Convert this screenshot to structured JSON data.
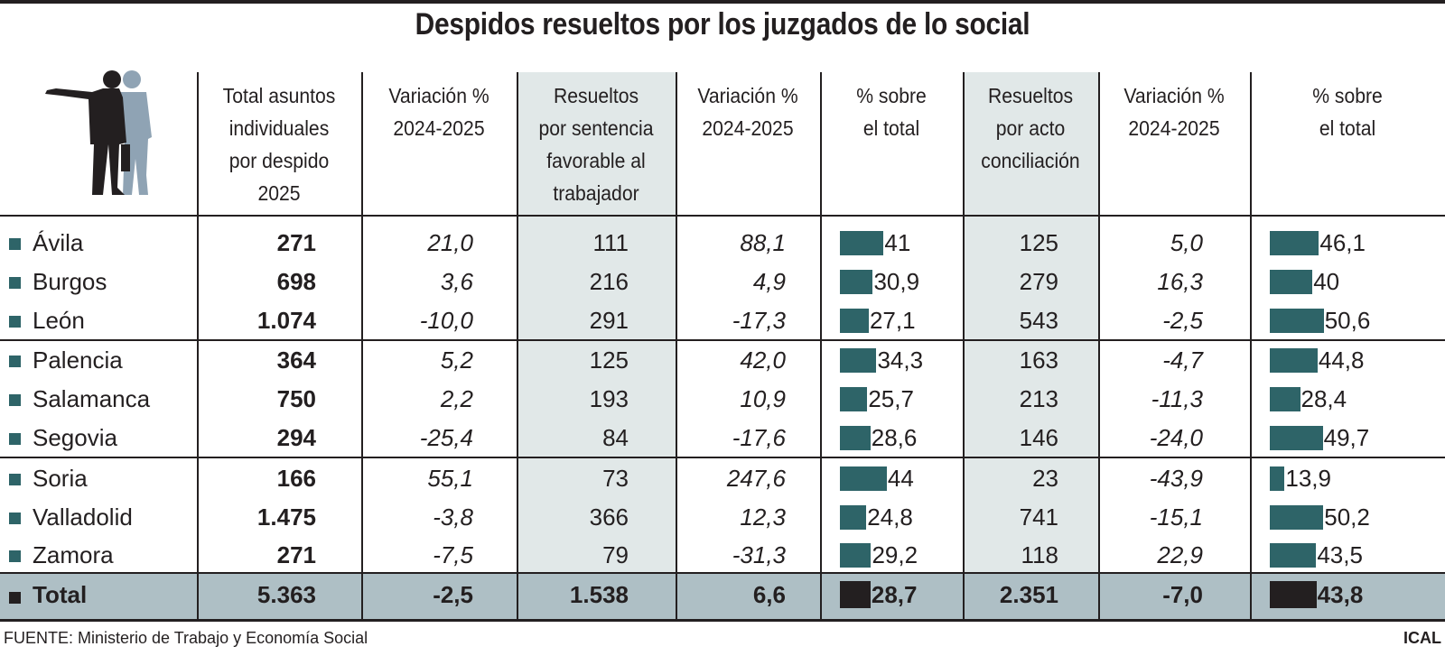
{
  "title": "Despidos resueltos por los juzgados de lo social",
  "source": "FUENTE: Ministerio de Trabajo y Economía Social",
  "credit": "ICAL",
  "colors": {
    "bar": "#2e6468",
    "total_bar": "#231f20",
    "shaded_column": "#e1e8e8",
    "total_row": "#aebfc5"
  },
  "icons": {
    "header": "businessman-pointing-silhouette-icon",
    "row_marker": "square-bullet-icon"
  },
  "chart_data": {
    "type": "table",
    "title": "Despidos resueltos por los juzgados de lo social",
    "columns": [
      "",
      "Total asuntos\nindividuales\npor despido\n2025",
      "Variación %\n2024-2025",
      "Resueltos\npor sentencia\nfavorable al\ntrabajador",
      "Variación %\n2024-2025",
      "% sobre\nel total",
      "Resueltos\npor acto\nconciliación",
      "Variación %\n2024-2025",
      "% sobre\nel total"
    ],
    "rows": [
      [
        "Ávila",
        "271",
        "21,0",
        "111",
        "88,1",
        "41",
        "125",
        "5,0",
        "46,1"
      ],
      [
        "Burgos",
        "698",
        "3,6",
        "216",
        "4,9",
        "30,9",
        "279",
        "16,3",
        "40"
      ],
      [
        "León",
        "1.074",
        "-10,0",
        "291",
        "-17,3",
        "27,1",
        "543",
        "-2,5",
        "50,6"
      ],
      [
        "Palencia",
        "364",
        "5,2",
        "125",
        "42,0",
        "34,3",
        "163",
        "-4,7",
        "44,8"
      ],
      [
        "Salamanca",
        "750",
        "2,2",
        "193",
        "10,9",
        "25,7",
        "213",
        "-11,3",
        "28,4"
      ],
      [
        "Segovia",
        "294",
        "-25,4",
        "84",
        "-17,6",
        "28,6",
        "146",
        "-24,0",
        "49,7"
      ],
      [
        "Soria",
        "166",
        "55,1",
        "73",
        "247,6",
        "44",
        "23",
        "-43,9",
        "13,9"
      ],
      [
        "Valladolid",
        "1.475",
        "-3,8",
        "366",
        "12,3",
        "24,8",
        "741",
        "-15,1",
        "50,2"
      ],
      [
        "Zamora",
        "271",
        "-7,5",
        "79",
        "-31,3",
        "29,2",
        "118",
        "22,9",
        "43,5"
      ]
    ],
    "total": [
      "Total",
      "5.363",
      "-2,5",
      "1.538",
      "6,6",
      "28,7",
      "2.351",
      "-7,0",
      "43,8"
    ],
    "bar_columns": [
      5,
      8
    ]
  }
}
